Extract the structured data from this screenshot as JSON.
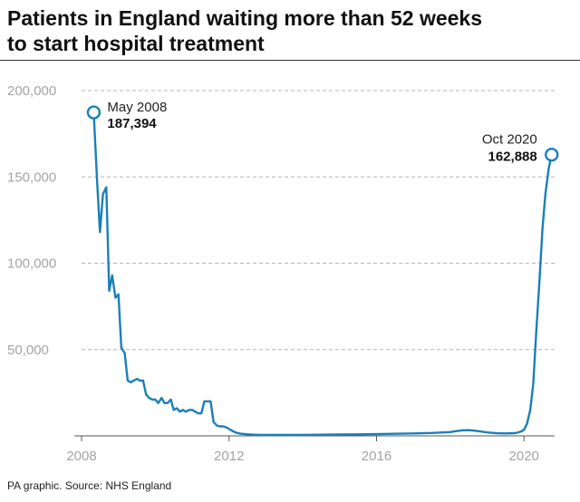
{
  "title_line1": "Patients in England waiting more than 52 weeks",
  "title_line2": "to start hospital treatment",
  "source": "PA graphic. Source: NHS England",
  "colors": {
    "line": "#1b7fba",
    "grid": "#b5b5b5",
    "axis_text": "#a3a3a3"
  },
  "chart_data": {
    "type": "line",
    "title": "Patients in England waiting more than 52 weeks to start hospital treatment",
    "xlabel": "",
    "ylabel": "",
    "xlim": [
      2008,
      2020.83
    ],
    "ylim": [
      0,
      200000
    ],
    "x_ticks": [
      {
        "value": 2008,
        "label": "2008"
      },
      {
        "value": 2012,
        "label": "2012"
      },
      {
        "value": 2016,
        "label": "2016"
      },
      {
        "value": 2020,
        "label": "2020"
      }
    ],
    "y_ticks": [
      {
        "value": 200000,
        "label": "200,000"
      },
      {
        "value": 150000,
        "label": "150,000"
      },
      {
        "value": 100000,
        "label": "100,000"
      },
      {
        "value": 50000,
        "label": "50,000"
      }
    ],
    "series": [
      {
        "name": "Patients waiting more than 52 weeks",
        "x": [
          2008.33,
          2008.42,
          2008.5,
          2008.58,
          2008.67,
          2008.75,
          2008.83,
          2008.92,
          2009.0,
          2009.08,
          2009.17,
          2009.25,
          2009.33,
          2009.42,
          2009.5,
          2009.58,
          2009.67,
          2009.75,
          2009.83,
          2009.92,
          2010.0,
          2010.08,
          2010.17,
          2010.25,
          2010.33,
          2010.42,
          2010.5,
          2010.58,
          2010.67,
          2010.75,
          2010.83,
          2010.92,
          2011.0,
          2011.08,
          2011.17,
          2011.25,
          2011.33,
          2011.42,
          2011.5,
          2011.58,
          2011.67,
          2011.75,
          2011.83,
          2011.92,
          2012.0,
          2012.08,
          2012.17,
          2012.25,
          2012.33,
          2012.5,
          2012.67,
          2012.83,
          2013.0,
          2013.5,
          2014.0,
          2014.5,
          2015.0,
          2015.5,
          2016.0,
          2016.5,
          2017.0,
          2017.5,
          2018.0,
          2018.17,
          2018.33,
          2018.5,
          2018.67,
          2018.83,
          2019.0,
          2019.25,
          2019.5,
          2019.75,
          2019.83,
          2019.92,
          2020.0,
          2020.08,
          2020.17,
          2020.25,
          2020.33,
          2020.42,
          2020.5,
          2020.58,
          2020.67,
          2020.75
        ],
        "values": [
          187394,
          148000,
          118000,
          140000,
          144000,
          84000,
          93000,
          80000,
          82000,
          51000,
          48000,
          32000,
          31000,
          32000,
          33000,
          32000,
          32000,
          24000,
          22000,
          21000,
          21000,
          19000,
          22000,
          19000,
          19000,
          21000,
          15000,
          16000,
          14000,
          15000,
          14000,
          15000,
          15000,
          14000,
          13000,
          13000,
          20000,
          20000,
          20000,
          8000,
          6000,
          5500,
          5500,
          5000,
          4000,
          3000,
          2000,
          1500,
          1200,
          900,
          700,
          600,
          500,
          500,
          600,
          700,
          800,
          900,
          1000,
          1200,
          1400,
          1700,
          2200,
          2800,
          3200,
          3300,
          3000,
          2500,
          2000,
          1500,
          1400,
          1600,
          1900,
          2500,
          3500,
          7000,
          15000,
          30000,
          60000,
          90000,
          120000,
          140000,
          155000,
          162888
        ]
      }
    ],
    "annotations": [
      {
        "label": "May 2008",
        "value_label": "187,394",
        "x": 2008.33,
        "y": 187394
      },
      {
        "label": "Oct 2020",
        "value_label": "162,888",
        "x": 2020.75,
        "y": 162888
      }
    ]
  }
}
